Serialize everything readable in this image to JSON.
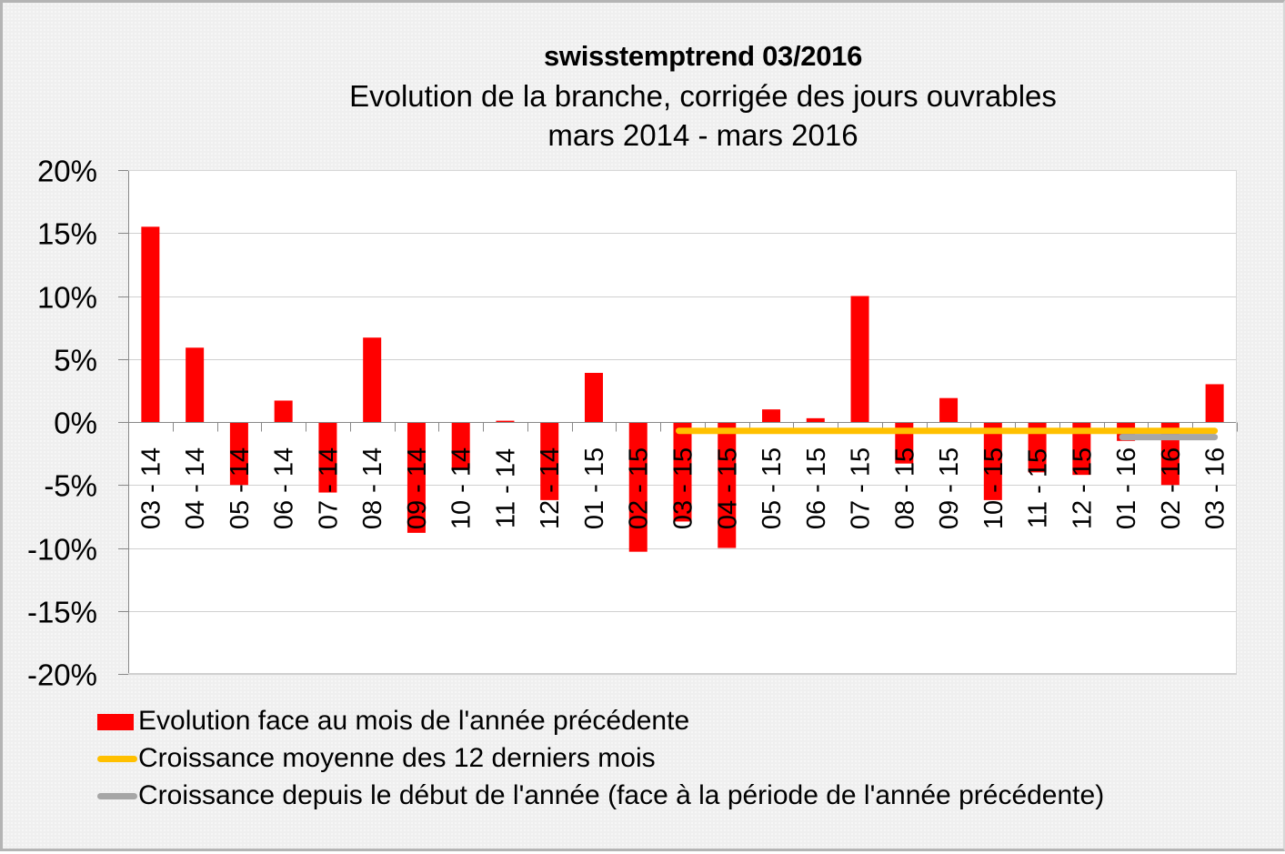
{
  "header": {
    "title": "swisstemptrend 03/2016",
    "subtitle": "Evolution de la branche, corrigée des jours ouvrables",
    "period": "mars 2014 - mars 2016"
  },
  "legend": {
    "items": [
      {
        "label": "Evolution face au mois de l'année précédente",
        "type": "bar",
        "color": "#ff0000"
      },
      {
        "label": "Croissance moyenne des 12 derniers mois",
        "type": "line",
        "color": "#ffc000"
      },
      {
        "label": "Croissance depuis le début de l'année (face à la période de l'année précédente)",
        "type": "line",
        "color": "#a6a6a6"
      }
    ]
  },
  "chart_data": {
    "type": "bar",
    "title": "swisstemptrend 03/2016",
    "subtitle": "Evolution de la branche, corrigée des jours ouvrables — mars 2014 - mars 2016",
    "xlabel": "",
    "ylabel": "",
    "ylim": [
      -20,
      20
    ],
    "yticks": [
      20,
      15,
      10,
      5,
      0,
      -5,
      -10,
      -15,
      -20
    ],
    "ytick_labels": [
      "20%",
      "15%",
      "10%",
      "5%",
      "0%",
      "-5%",
      "-10%",
      "-15%",
      "-20%"
    ],
    "grid": true,
    "legend_position": "bottom",
    "categories": [
      "03 - 14",
      "04 - 14",
      "05 - 14",
      "06 - 14",
      "07 - 14",
      "08 - 14",
      "09 - 14",
      "10 - 14",
      "11 - 14",
      "12 - 14",
      "01 - 15",
      "02 - 15",
      "03 - 15",
      "04 - 15",
      "05 - 15",
      "06 - 15",
      "07 - 15",
      "08 - 15",
      "09 - 15",
      "10 - 15",
      "11 - 15",
      "12 - 15",
      "01 - 16",
      "02 - 16",
      "03 - 16"
    ],
    "series": [
      {
        "name": "Evolution face au mois de l'année précédente",
        "type": "bar",
        "color": "#ff0000",
        "values": [
          15.5,
          5.9,
          -5.0,
          1.7,
          -5.6,
          6.7,
          -8.8,
          -3.7,
          0.1,
          -6.2,
          3.9,
          -10.3,
          -7.9,
          -10.0,
          1.0,
          0.3,
          10.0,
          -3.3,
          1.9,
          -6.2,
          -4.0,
          -4.2,
          -1.5,
          -5.0,
          3.0
        ]
      },
      {
        "name": "Croissance moyenne des 12 derniers mois",
        "type": "line",
        "color": "#ffc000",
        "from": "03 - 15",
        "to": "03 - 16",
        "value": -0.7
      },
      {
        "name": "Croissance depuis le début de l'année (face à la période de l'année précédente)",
        "type": "line",
        "color": "#a6a6a6",
        "from": "01 - 16",
        "to": "03 - 16",
        "value": -1.2
      }
    ]
  }
}
